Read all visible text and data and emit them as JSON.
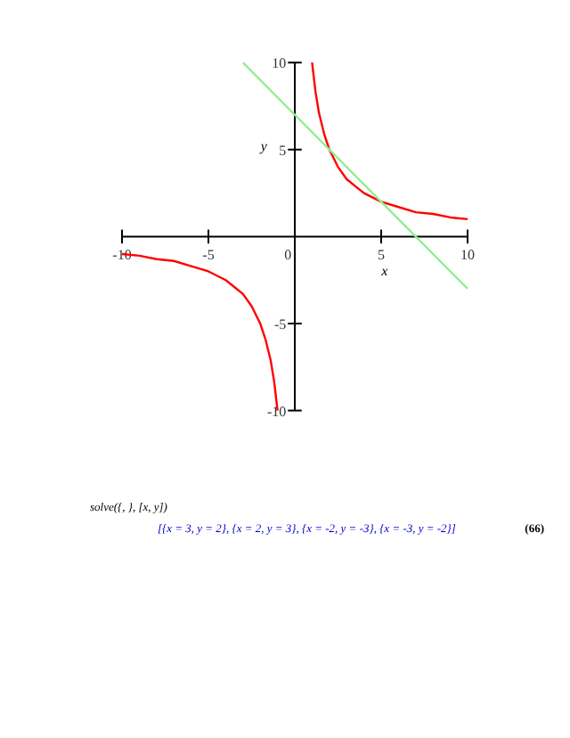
{
  "chart_data": {
    "type": "line",
    "xlabel": "x",
    "ylabel": "y",
    "series": [
      {
        "color": "#ff0000",
        "x": [
          -10,
          -9,
          -8,
          -7,
          -6,
          -5,
          -4,
          -3.5,
          -3,
          -2.5,
          -2,
          -1.7,
          -1.4,
          -1.2,
          -1
        ],
        "values": [
          -1,
          -1.1,
          -1.3,
          -1.4,
          -1.7,
          -2,
          -2.5,
          -2.9,
          -3.3,
          -4,
          -5,
          -5.9,
          -7.1,
          -8.3,
          -10
        ]
      },
      {
        "color": "#ff0000",
        "x": [
          1,
          1.2,
          1.4,
          1.7,
          2,
          2.5,
          3,
          3.5,
          4,
          5,
          6,
          7,
          8,
          9,
          10
        ],
        "values": [
          10,
          8.3,
          7.1,
          5.9,
          5,
          4,
          3.3,
          2.9,
          2.5,
          2,
          1.7,
          1.4,
          1.3,
          1.1,
          1
        ]
      },
      {
        "color": "#90ee90",
        "x": [
          -3,
          10
        ],
        "values": [
          10,
          -3
        ]
      }
    ],
    "xlim": [
      -10,
      10
    ],
    "ylim": [
      -10,
      10
    ],
    "xticks": [
      -10,
      -5,
      0,
      5,
      10
    ],
    "yticks": [
      -10,
      -5,
      5,
      10
    ],
    "grid": false,
    "annotations": [
      "solve({, }, [x, y])",
      "[{x = 3, y = 2}, {x = 2, y = 3}, {x = -2, y = -3}, {x = -3, y = -2}]",
      "(66)"
    ]
  }
}
